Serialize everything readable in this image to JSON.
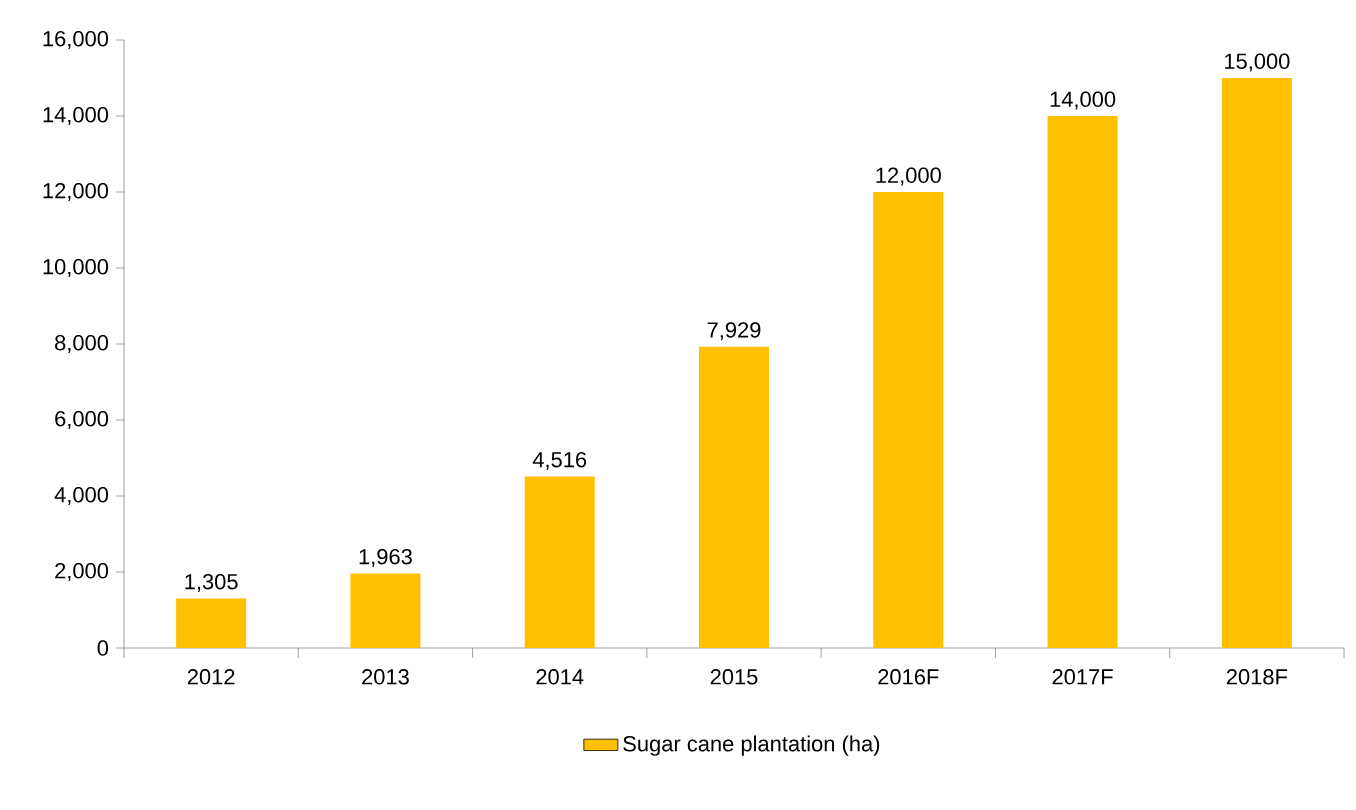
{
  "chart_data": {
    "type": "bar",
    "categories": [
      "2012",
      "2013",
      "2014",
      "2015",
      "2016F",
      "2017F",
      "2018F"
    ],
    "series": [
      {
        "name": "Sugar cane plantation (ha)",
        "color": "#ffc000",
        "values": [
          1305,
          1963,
          4516,
          7929,
          12000,
          14000,
          15000
        ],
        "value_labels": [
          "1,305",
          "1,963",
          "4,516",
          "7,929",
          "12,000",
          "14,000",
          "15,000"
        ]
      }
    ],
    "ylim": [
      0,
      16000
    ],
    "yticks": [
      0,
      {
        "value": 2000,
        "label": "2,000"
      },
      {
        "value": 4000,
        "label": "4,000"
      },
      {
        "value": 6000,
        "label": "6,000"
      },
      {
        "value": 8000,
        "label": "8,000"
      },
      {
        "value": 10000,
        "label": "10,000"
      },
      {
        "value": 12000,
        "label": "12,000"
      },
      {
        "value": 14000,
        "label": "14,000"
      },
      {
        "value": 16000,
        "label": "16,000"
      }
    ],
    "grid": false,
    "legend": "bottom"
  }
}
